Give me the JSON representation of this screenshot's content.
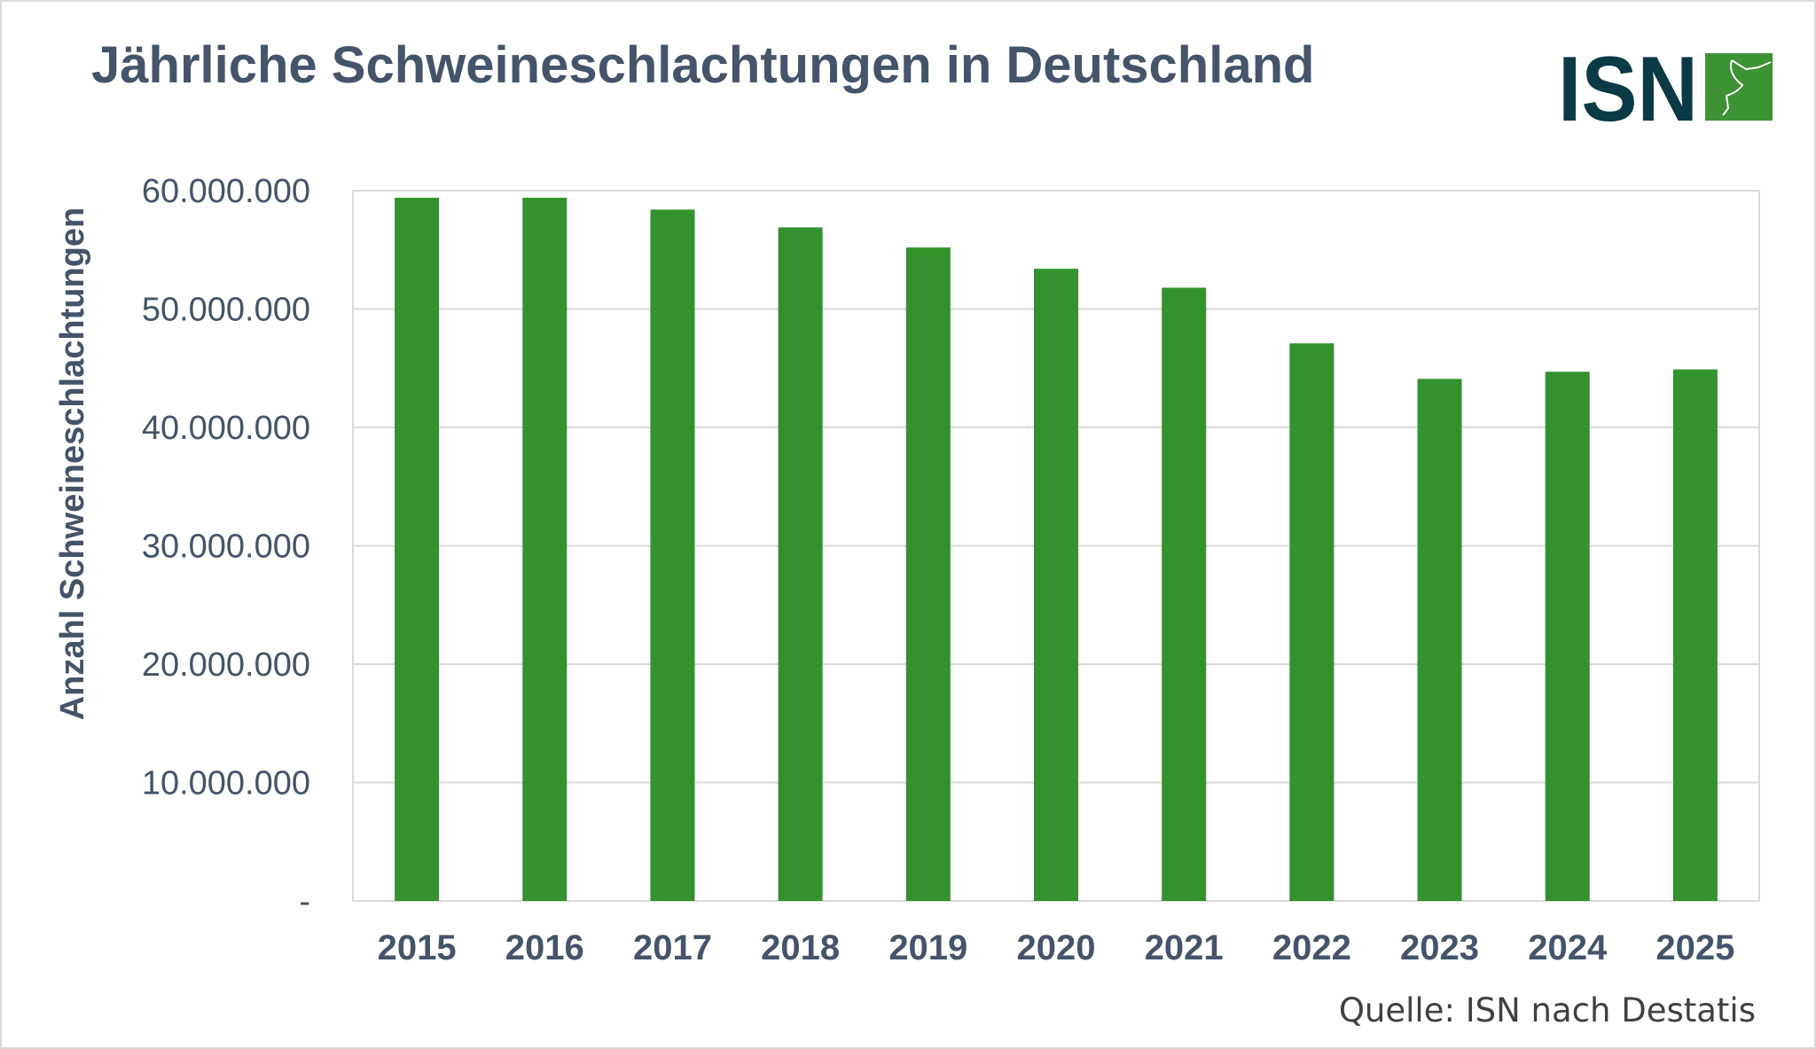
{
  "title": "Jährliche Schweineschlachtungen in Deutschland",
  "logo": {
    "text": "ISN",
    "colors": {
      "text": "#0b3a47",
      "box": "#3d9234"
    }
  },
  "source": "Quelle: ISN nach Destatis",
  "colors": {
    "bar": "#33922d",
    "axis_text": "#44546a",
    "grid": "#d9d9d9"
  },
  "chart_data": {
    "type": "bar",
    "title": "Jährliche Schweineschlachtungen in Deutschland",
    "xlabel": "",
    "ylabel": "Anzahl Schweineschlachtungen",
    "categories": [
      "2015",
      "2016",
      "2017",
      "2018",
      "2019",
      "2020",
      "2021",
      "2022",
      "2023",
      "2024",
      "2025"
    ],
    "values": [
      59400000,
      59400000,
      58400000,
      56900000,
      55200000,
      53400000,
      51800000,
      47100000,
      44100000,
      44700000,
      44900000
    ],
    "ylim": [
      0,
      60000000
    ],
    "yticks": [
      0,
      10000000,
      20000000,
      30000000,
      40000000,
      50000000,
      60000000
    ],
    "ytick_labels": [
      "-",
      "10.000.000",
      "20.000.000",
      "30.000.000",
      "40.000.000",
      "50.000.000",
      "60.000.000"
    ],
    "grid": true,
    "legend": "none"
  }
}
